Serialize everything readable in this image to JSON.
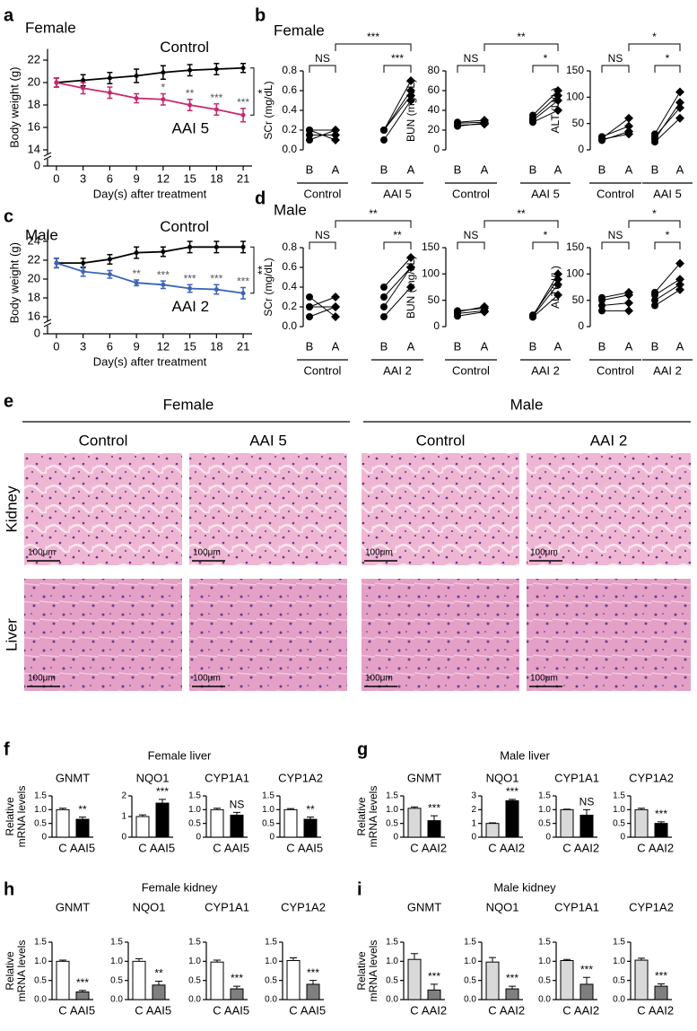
{
  "figure": {
    "letters": [
      "a",
      "b",
      "c",
      "d",
      "e",
      "f",
      "g",
      "h",
      "i"
    ],
    "panel_titles": [
      "Female",
      "Male",
      "Female liver",
      "Male liver",
      "Female kidney",
      "Male kidney"
    ],
    "histology": {
      "sex_headers": [
        "Female",
        "Male"
      ],
      "column_labels": [
        "Control",
        "AAI 5",
        "Control",
        "AAI 2"
      ],
      "row_labels": [
        "Kidney",
        "Liver"
      ],
      "scale_bar": "100μm"
    }
  },
  "chart_data": [
    {
      "type": "line",
      "title": "Female",
      "xlabel": "Day(s) after treatment",
      "ylabel": "Body weight (g)",
      "x": [
        0,
        3,
        6,
        9,
        12,
        15,
        18,
        21
      ],
      "xlim": [
        -1,
        22
      ],
      "xticks": [
        0,
        3,
        6,
        9,
        12,
        15,
        18,
        21
      ],
      "ylim": [
        14,
        23
      ],
      "yticks": [
        14,
        16,
        18,
        20,
        22
      ],
      "y_break_tick": 0,
      "series": [
        {
          "name": "Control",
          "color": "#000000",
          "values": [
            20,
            20.2,
            20.4,
            20.6,
            20.9,
            21.1,
            21.2,
            21.3
          ],
          "errors": [
            0.4,
            0.5,
            0.5,
            0.6,
            0.6,
            0.5,
            0.5,
            0.4
          ]
        },
        {
          "name": "AAI 5",
          "color": "#c8286e",
          "values": [
            20,
            19.5,
            19.1,
            18.6,
            18.5,
            18.0,
            17.6,
            17.1
          ],
          "errors": [
            0.4,
            0.5,
            0.5,
            0.4,
            0.5,
            0.5,
            0.5,
            0.6
          ]
        }
      ],
      "annotations": [
        {
          "x": 12,
          "label": "*"
        },
        {
          "x": 15,
          "label": "**"
        },
        {
          "x": 18,
          "label": "***"
        },
        {
          "x": 21,
          "label": "***"
        }
      ],
      "bracket_label": "*"
    },
    {
      "type": "paired",
      "ylabel": "SCr (mg/dL)",
      "ylim": [
        0,
        0.8
      ],
      "yticks": [
        {
          "value": 0,
          "label": "0.0"
        },
        0.2,
        0.4,
        0.6,
        0.8
      ],
      "sublabels": [
        "B",
        "A"
      ],
      "groups": [
        {
          "name": "Control",
          "before": [
            0.1,
            0.2,
            0.2,
            0.15
          ],
          "after": [
            0.2,
            0.1,
            0.2,
            0.15
          ]
        },
        {
          "name": "AAI 5",
          "before": [
            0.1,
            0.2,
            0.2,
            0.2
          ],
          "after": [
            0.5,
            0.7,
            0.6,
            0.55
          ]
        }
      ],
      "within": [
        "NS",
        "***"
      ],
      "between": "***"
    },
    {
      "type": "paired",
      "ylabel": "BUN (mg/dL)",
      "ylim": [
        0,
        80
      ],
      "yticks": [
        0,
        20,
        40,
        60,
        80
      ],
      "sublabels": [
        "B",
        "A"
      ],
      "groups": [
        {
          "name": "Control",
          "before": [
            25,
            27,
            28,
            24
          ],
          "after": [
            26,
            28,
            30,
            27
          ]
        },
        {
          "name": "AAI 5",
          "before": [
            28,
            32,
            35,
            30
          ],
          "after": [
            40,
            55,
            60,
            50
          ]
        }
      ],
      "within": [
        "NS",
        "*"
      ],
      "between": "**"
    },
    {
      "type": "paired",
      "ylabel": "ALT (U/L)",
      "ylim": [
        0,
        150
      ],
      "yticks": [
        0,
        50,
        100,
        150
      ],
      "sublabels": [
        "B",
        "A"
      ],
      "groups": [
        {
          "name": "Control",
          "before": [
            20,
            25,
            22,
            18
          ],
          "after": [
            30,
            45,
            60,
            35
          ]
        },
        {
          "name": "AAI 5",
          "before": [
            15,
            25,
            30,
            20
          ],
          "after": [
            60,
            80,
            110,
            90
          ]
        }
      ],
      "within": [
        "NS",
        "*"
      ],
      "between": "*"
    },
    {
      "type": "line",
      "title": "Male",
      "xlabel": "Day(s) after treatment",
      "ylabel": "Body weight (g)",
      "x": [
        0,
        3,
        6,
        9,
        12,
        15,
        18,
        21
      ],
      "xlim": [
        -1,
        22
      ],
      "xticks": [
        0,
        3,
        6,
        9,
        12,
        15,
        18,
        21
      ],
      "ylim": [
        16,
        25
      ],
      "yticks": [
        16,
        18,
        20,
        22,
        24
      ],
      "y_break_tick": 0,
      "series": [
        {
          "name": "Control",
          "color": "#000000",
          "values": [
            21.7,
            21.7,
            22.1,
            22.8,
            22.9,
            23.4,
            23.4,
            23.4
          ],
          "errors": [
            0.5,
            0.5,
            0.5,
            0.6,
            0.5,
            0.6,
            0.6,
            0.6
          ]
        },
        {
          "name": "AAI 2",
          "color": "#3a64b8",
          "values": [
            21.7,
            20.8,
            20.5,
            19.6,
            19.4,
            19.0,
            18.9,
            18.5
          ],
          "errors": [
            0.5,
            0.5,
            0.4,
            0.3,
            0.4,
            0.4,
            0.5,
            0.6
          ]
        }
      ],
      "annotations": [
        {
          "x": 9,
          "label": "**"
        },
        {
          "x": 12,
          "label": "***"
        },
        {
          "x": 15,
          "label": "***"
        },
        {
          "x": 18,
          "label": "***"
        },
        {
          "x": 21,
          "label": "***"
        }
      ],
      "bracket_label": "**"
    },
    {
      "type": "paired",
      "ylabel": "SCr (mg/dL)",
      "ylim": [
        0,
        0.8
      ],
      "yticks": [
        {
          "value": 0,
          "label": "0.0"
        },
        0.2,
        0.4,
        0.6,
        0.8
      ],
      "sublabels": [
        "B",
        "A"
      ],
      "groups": [
        {
          "name": "Control",
          "before": [
            0.1,
            0.2,
            0.3,
            0.2
          ],
          "after": [
            0.2,
            0.3,
            0.1,
            0.2
          ]
        },
        {
          "name": "AAI 2",
          "before": [
            0.1,
            0.2,
            0.3,
            0.4
          ],
          "after": [
            0.4,
            0.6,
            0.6,
            0.7
          ]
        }
      ],
      "within": [
        "NS",
        "**"
      ],
      "between": "**"
    },
    {
      "type": "paired",
      "ylabel": "BUN (mg/dL)",
      "ylim": [
        0,
        150
      ],
      "yticks": [
        0,
        50,
        100,
        150
      ],
      "sublabels": [
        "B",
        "A"
      ],
      "groups": [
        {
          "name": "Control",
          "before": [
            20,
            25,
            30,
            28
          ],
          "after": [
            28,
            30,
            35,
            38
          ]
        },
        {
          "name": "AAI 2",
          "before": [
            18,
            20,
            22,
            20
          ],
          "after": [
            60,
            80,
            90,
            100
          ]
        }
      ],
      "within": [
        "NS",
        "*"
      ],
      "between": "**"
    },
    {
      "type": "paired",
      "ylabel": "ALT(U/L)",
      "ylim": [
        0,
        150
      ],
      "yticks": [
        0,
        50,
        100,
        150
      ],
      "sublabels": [
        "B",
        "A"
      ],
      "groups": [
        {
          "name": "Control",
          "before": [
            30,
            40,
            50,
            55
          ],
          "after": [
            30,
            45,
            60,
            65
          ]
        },
        {
          "name": "AAI 2",
          "before": [
            40,
            50,
            60,
            65
          ],
          "after": [
            70,
            80,
            90,
            120
          ]
        }
      ],
      "within": [
        "NS",
        "*"
      ],
      "between": "*"
    },
    {
      "type": "bar",
      "title": "GNMT",
      "ylabel": [
        "Relative",
        "mRNA levels"
      ],
      "categories": [
        "C",
        "AAI5"
      ],
      "values": [
        1.0,
        0.65
      ],
      "errors": [
        0.05,
        0.08
      ],
      "colors": [
        "#ffffff",
        "#000000"
      ],
      "ylim": [
        0,
        1.5
      ],
      "yticks": [
        0,
        0.5,
        {
          "value": 1,
          "label": "1.0"
        },
        1.5
      ],
      "significance": "**"
    },
    {
      "type": "bar",
      "title": "NQO1",
      "categories": [
        "C",
        "AAI5"
      ],
      "values": [
        1.0,
        1.65
      ],
      "errors": [
        0.08,
        0.18
      ],
      "colors": [
        "#ffffff",
        "#000000"
      ],
      "ylim": [
        0,
        2
      ],
      "yticks": [
        0,
        1,
        2
      ],
      "significance": "***"
    },
    {
      "type": "bar",
      "title": "CYP1A1",
      "categories": [
        "C",
        "AAI5"
      ],
      "values": [
        1.0,
        0.8
      ],
      "errors": [
        0.05,
        0.1
      ],
      "colors": [
        "#ffffff",
        "#000000"
      ],
      "ylim": [
        0,
        1.5
      ],
      "yticks": [
        0,
        0.5,
        {
          "value": 1,
          "label": "1.0"
        },
        1.5
      ],
      "significance": "NS"
    },
    {
      "type": "bar",
      "title": "CYP1A2",
      "categories": [
        "C",
        "AAI5"
      ],
      "values": [
        1.0,
        0.65
      ],
      "errors": [
        0.04,
        0.08
      ],
      "colors": [
        "#ffffff",
        "#000000"
      ],
      "ylim": [
        0,
        1.5
      ],
      "yticks": [
        0,
        0.5,
        {
          "value": 1,
          "label": "1.0"
        },
        1.5
      ],
      "significance": "**"
    },
    {
      "type": "bar",
      "title": "GNMT",
      "ylabel": [
        "Relative",
        "mRNA levels"
      ],
      "categories": [
        "C",
        "AAI2"
      ],
      "values": [
        1.05,
        0.6
      ],
      "errors": [
        0.05,
        0.18
      ],
      "colors": [
        "#d9d9d9",
        "#000000"
      ],
      "ylim": [
        0,
        1.5
      ],
      "yticks": [
        0,
        0.5,
        {
          "value": 1,
          "label": "1.0"
        },
        1.5
      ],
      "significance": "***"
    },
    {
      "type": "bar",
      "title": "NQO1",
      "categories": [
        "C",
        "AAI2"
      ],
      "values": [
        1.0,
        2.65
      ],
      "errors": [
        0.04,
        0.1
      ],
      "colors": [
        "#d9d9d9",
        "#000000"
      ],
      "ylim": [
        0,
        3
      ],
      "yticks": [
        0,
        1,
        2,
        3
      ],
      "significance": "***"
    },
    {
      "type": "bar",
      "title": "CYP1A1",
      "categories": [
        "C",
        "AAI2"
      ],
      "values": [
        1.0,
        0.8
      ],
      "errors": [
        0.02,
        0.2
      ],
      "colors": [
        "#d9d9d9",
        "#000000"
      ],
      "ylim": [
        0,
        1.5
      ],
      "yticks": [
        0,
        0.5,
        {
          "value": 1,
          "label": "1.0"
        },
        1.5
      ],
      "significance": "NS"
    },
    {
      "type": "bar",
      "title": "CYP1A2",
      "categories": [
        "C",
        "AAI2"
      ],
      "values": [
        1.0,
        0.5
      ],
      "errors": [
        0.05,
        0.06
      ],
      "colors": [
        "#d9d9d9",
        "#000000"
      ],
      "ylim": [
        0,
        1.5
      ],
      "yticks": [
        0,
        0.5,
        {
          "value": 1,
          "label": "1.0"
        },
        1.5
      ],
      "significance": "***"
    },
    {
      "type": "bar",
      "title": "GNMT",
      "ylabel": [
        "Relative",
        "mRNA levels"
      ],
      "categories": [
        "C",
        "AAI5"
      ],
      "values": [
        1.0,
        0.2
      ],
      "errors": [
        0.03,
        0.04
      ],
      "colors": [
        "#ffffff",
        "#7f7f7f"
      ],
      "ylim": [
        0,
        1.5
      ],
      "yticks": [
        {
          "value": 0,
          "label": "0.0"
        },
        0.5,
        {
          "value": 1,
          "label": "1.0"
        },
        1.5
      ],
      "significance": "***"
    },
    {
      "type": "bar",
      "title": "NQO1",
      "categories": [
        "C",
        "AAI5"
      ],
      "values": [
        1.0,
        0.38
      ],
      "errors": [
        0.07,
        0.1
      ],
      "colors": [
        "#ffffff",
        "#7f7f7f"
      ],
      "ylim": [
        0,
        1.5
      ],
      "yticks": [
        {
          "value": 0,
          "label": "0.0"
        },
        0.5,
        {
          "value": 1,
          "label": "1.0"
        },
        1.5
      ],
      "significance": "**"
    },
    {
      "type": "bar",
      "title": "CYP1A1",
      "categories": [
        "C",
        "AAI5"
      ],
      "values": [
        0.98,
        0.28
      ],
      "errors": [
        0.05,
        0.07
      ],
      "colors": [
        "#ffffff",
        "#7f7f7f"
      ],
      "ylim": [
        0,
        1.5
      ],
      "yticks": [
        {
          "value": 0,
          "label": "0.0"
        },
        0.5,
        {
          "value": 1,
          "label": "1.0"
        },
        1.5
      ],
      "significance": "***"
    },
    {
      "type": "bar",
      "title": "CYP1A2",
      "categories": [
        "C",
        "AAI5"
      ],
      "values": [
        1.02,
        0.4
      ],
      "errors": [
        0.07,
        0.1
      ],
      "colors": [
        "#ffffff",
        "#7f7f7f"
      ],
      "ylim": [
        0,
        1.5
      ],
      "yticks": [
        {
          "value": 0,
          "label": "0.0"
        },
        0.5,
        {
          "value": 1,
          "label": "1.0"
        },
        1.5
      ],
      "significance": "***"
    },
    {
      "type": "bar",
      "title": "GNMT",
      "ylabel": [
        "Relative",
        "mRNA levels"
      ],
      "categories": [
        "C",
        "AAI2"
      ],
      "values": [
        1.05,
        0.25
      ],
      "errors": [
        0.15,
        0.15
      ],
      "colors": [
        "#d9d9d9",
        "#7f7f7f"
      ],
      "ylim": [
        0,
        1.5
      ],
      "yticks": [
        {
          "value": 0,
          "label": "0.0"
        },
        0.5,
        {
          "value": 1,
          "label": "1.0"
        },
        1.5
      ],
      "significance": "***"
    },
    {
      "type": "bar",
      "title": "NQO1",
      "categories": [
        "C",
        "AAI2"
      ],
      "values": [
        0.98,
        0.28
      ],
      "errors": [
        0.12,
        0.07
      ],
      "colors": [
        "#d9d9d9",
        "#7f7f7f"
      ],
      "ylim": [
        0,
        1.5
      ],
      "yticks": [
        {
          "value": 0,
          "label": "0.0"
        },
        0.5,
        {
          "value": 1,
          "label": "1.0"
        },
        1.5
      ],
      "significance": "***"
    },
    {
      "type": "bar",
      "title": "CYP1A1",
      "categories": [
        "C",
        "AAI2"
      ],
      "values": [
        1.02,
        0.4
      ],
      "errors": [
        0.03,
        0.18
      ],
      "colors": [
        "#d9d9d9",
        "#7f7f7f"
      ],
      "ylim": [
        0,
        1.5
      ],
      "yticks": [
        {
          "value": 0,
          "label": "0.0"
        },
        0.5,
        {
          "value": 1,
          "label": "1.0"
        },
        1.5
      ],
      "significance": "***"
    },
    {
      "type": "bar",
      "title": "CYP1A2",
      "categories": [
        "C",
        "AAI2"
      ],
      "values": [
        1.03,
        0.35
      ],
      "errors": [
        0.05,
        0.06
      ],
      "colors": [
        "#d9d9d9",
        "#7f7f7f"
      ],
      "ylim": [
        0,
        1.5
      ],
      "yticks": [
        {
          "value": 0,
          "label": "0.0"
        },
        0.5,
        {
          "value": 1,
          "label": "1.0"
        },
        1.5
      ],
      "significance": "***"
    }
  ]
}
